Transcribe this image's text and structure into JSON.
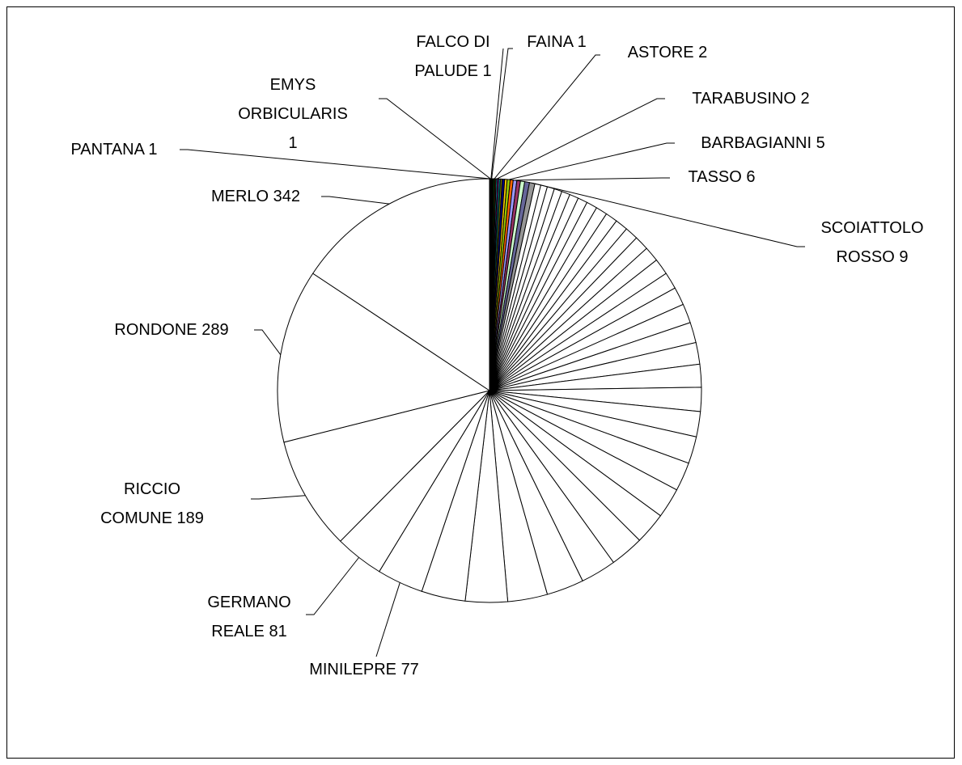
{
  "chart_data": {
    "type": "pie",
    "categories": [
      "PANTANA",
      "EMYS ORBICULARIS",
      "FALCO DI PALUDE",
      "FAINA",
      null,
      null,
      null,
      "ASTORE",
      null,
      "TARABUSINO",
      null,
      null,
      null,
      null,
      null,
      "BARBAGIANNI",
      null,
      "TASSO",
      null,
      null,
      null,
      "SCOIATTOLO ROSSO",
      null,
      null,
      null,
      null,
      null,
      null,
      null,
      null,
      null,
      null,
      null,
      null,
      null,
      null,
      null,
      null,
      null,
      null,
      null,
      null,
      null,
      null,
      null,
      null,
      null,
      null,
      null,
      null,
      null,
      null,
      null,
      null,
      null,
      "MINILEPRE",
      "GERMANO REALE",
      "RICCIO COMUNE",
      "RONDONE",
      "MERLO"
    ],
    "values": [
      1,
      1,
      1,
      1,
      1,
      1,
      1,
      2,
      2,
      2,
      2,
      3,
      3,
      4,
      4,
      5,
      5,
      6,
      6,
      7,
      8,
      9,
      10,
      11,
      12,
      13,
      14,
      15,
      16,
      18,
      19,
      20,
      21,
      22,
      24,
      25,
      27,
      28,
      30,
      32,
      34,
      36,
      38,
      40,
      42,
      45,
      48,
      50,
      53,
      56,
      59,
      62,
      66,
      70,
      73,
      77,
      81,
      189,
      289,
      342
    ],
    "colors": [
      "#0000ff",
      "#800080",
      "#c0c0c0",
      "#808080",
      "#00ff00",
      "#ff0000",
      "#ffff00",
      "#008000",
      "#800000",
      "#00ffff",
      "#ff00ff",
      "#008080",
      "#808000",
      "#000080",
      "#ffcc00",
      "#99cc00",
      "#ff6600",
      "#9999ff",
      "#993366",
      "#ccffcc",
      "#666699",
      "#969696",
      "#ffffff",
      "#ffffff",
      "#ffffff",
      "#ffffff",
      "#ffffff",
      "#ffffff",
      "#ffffff",
      "#ffffff",
      "#ffffff",
      "#ffffff",
      "#ffffff",
      "#ffffff",
      "#ffffff",
      "#ffffff",
      "#ffffff",
      "#ffffff",
      "#ffffff",
      "#ffffff",
      "#ffffff",
      "#ffffff",
      "#ffffff",
      "#ffffff",
      "#ffffff",
      "#ffffff",
      "#ffffff",
      "#ffffff",
      "#ffffff",
      "#ffffff",
      "#ffffff",
      "#ffffff",
      "#ffffff",
      "#ffffff",
      "#ffffff",
      "#ffffff",
      "#ffffff",
      "#ffffff",
      "#ffffff",
      "#ffffff"
    ]
  }
}
